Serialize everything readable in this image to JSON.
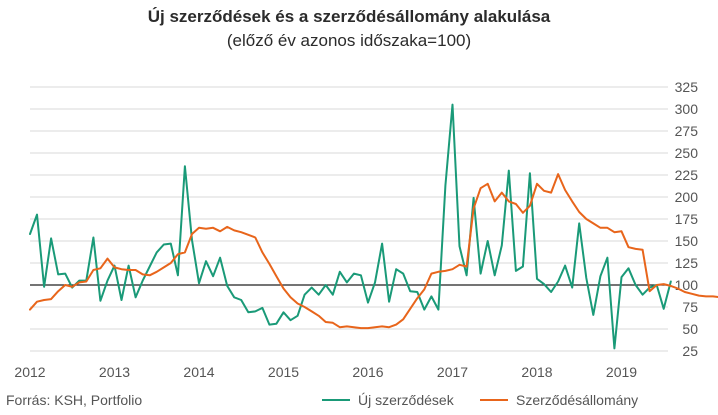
{
  "colors": {
    "series1": "#1a9a78",
    "series2": "#e8651b",
    "gridline": "#d9d9d9",
    "baseline": "#222222",
    "text": "#555555"
  },
  "source": "Forrás: KSH, Portfolio",
  "chart_data": {
    "type": "line",
    "title": "Új szerződések és a szerződésállomány alakulása",
    "subtitle": "(előző év azonos időszaka=100)",
    "ylim": [
      25,
      325
    ],
    "yticks": [
      25,
      50,
      75,
      100,
      125,
      150,
      175,
      200,
      225,
      250,
      275,
      300,
      325
    ],
    "y_axis_position": "right",
    "reference_line": 100,
    "grid": true,
    "legend_position": "bottom",
    "x_start": 2012.0,
    "x_step": 0.08333,
    "xticks": [
      "2012",
      "2013",
      "2014",
      "2015",
      "2016",
      "2017",
      "2018",
      "2019"
    ],
    "series": [
      {
        "name": "Új szerződések",
        "color": "#1a9a78",
        "values": [
          158,
          180,
          98,
          153,
          112,
          113,
          97,
          105,
          105,
          154,
          82,
          105,
          122,
          83,
          122,
          86,
          105,
          121,
          137,
          146,
          147,
          111,
          235,
          151,
          102,
          127,
          110,
          131,
          99,
          86,
          83,
          69,
          70,
          74,
          55,
          56,
          69,
          60,
          65,
          89,
          97,
          89,
          100,
          89,
          115,
          103,
          113,
          111,
          80,
          103,
          147,
          81,
          118,
          113,
          93,
          92,
          72,
          87,
          72,
          213,
          305,
          144,
          111,
          199,
          113,
          150,
          111,
          145,
          230,
          116,
          121,
          227,
          107,
          101,
          92,
          104,
          122,
          97,
          170,
          108,
          66,
          110,
          131,
          28,
          109,
          119,
          100,
          89,
          97,
          100,
          73,
          104
        ]
      },
      {
        "name": "Szerződésállomány",
        "color": "#e8651b",
        "values": [
          72,
          81,
          83,
          84,
          93,
          100,
          98,
          103,
          104,
          117,
          119,
          130,
          120,
          118,
          117,
          117,
          112,
          111,
          115,
          120,
          125,
          135,
          137,
          158,
          165,
          164,
          165,
          161,
          166,
          162,
          160,
          157,
          154,
          137,
          124,
          110,
          96,
          86,
          79,
          75,
          70,
          65,
          58,
          57,
          52,
          53,
          52,
          51,
          51,
          52,
          53,
          52,
          55,
          61,
          73,
          85,
          95,
          113,
          115,
          116,
          118,
          123,
          121,
          187,
          210,
          215,
          195,
          205,
          195,
          192,
          182,
          190,
          215,
          207,
          205,
          226,
          208,
          195,
          183,
          175,
          170,
          165,
          165,
          160,
          161,
          143,
          141,
          140,
          93,
          100,
          101,
          99,
          96,
          92,
          90,
          88,
          87,
          87,
          86
        ]
      }
    ]
  }
}
